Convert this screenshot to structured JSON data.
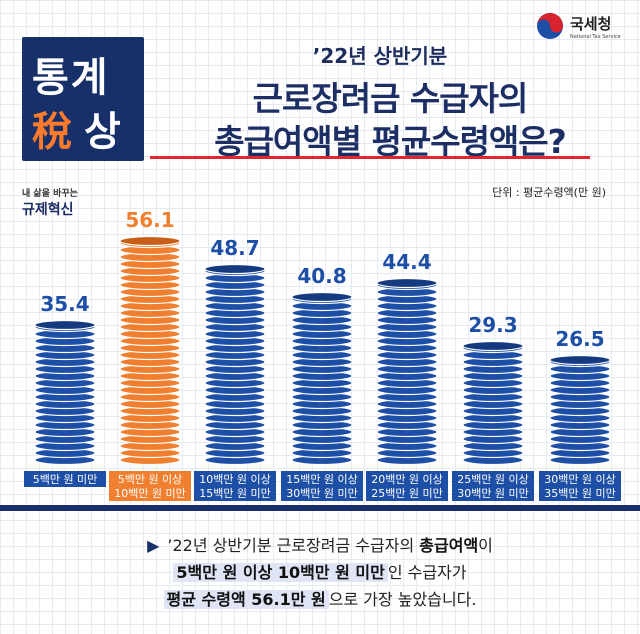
{
  "header": {
    "logo_line1": "통계",
    "logo_line2a": "稅",
    "logo_line2b": "상",
    "agency_name": "국세청",
    "agency_sub": "National Tax Service",
    "subtitle": "’22년 상반기분",
    "title_line1": "근로장려금 수급자의",
    "title_line2": "총급여액별 평균수령액은?",
    "badge_small": "내 삶을 바꾸는",
    "badge_big": "규제혁신",
    "unit": "단위 : 평균수령액(만 원)"
  },
  "colors": {
    "blue": "#1e4fa6",
    "blue_dark": "#163a80",
    "orange": "#f07f2f",
    "orange_dark": "#c85e17",
    "label_blue": "#1e4fa6",
    "label_orange": "#f07f2f"
  },
  "chart_data": {
    "type": "bar",
    "title": "’22년 상반기분 근로장려금 수급자의 총급여액별 평균수령액은?",
    "ylabel": "평균수령액(만 원)",
    "categories": [
      "5백만 원 미만",
      "5백만 원 이상 10백만 원 미만",
      "10백만 원 이상 15백만 원 미만",
      "15백만 원 이상 30백만 원 미만",
      "20백만 원 이상 25백만 원 미만",
      "25백만 원 이상 30백만 원 미만",
      "30백만 원 이상 35백만 원 미만"
    ],
    "category_lines": [
      [
        "5백만 원 미만"
      ],
      [
        "5백만 원 이상",
        "10백만 원 미만"
      ],
      [
        "10백만 원 이상",
        "15백만 원 미만"
      ],
      [
        "15백만 원 이상",
        "30백만 원 미만"
      ],
      [
        "20백만 원 이상",
        "25백만 원 미만"
      ],
      [
        "25백만 원 이상",
        "30백만 원 미만"
      ],
      [
        "30백만 원 이상",
        "35백만 원 미만"
      ]
    ],
    "values": [
      35.4,
      56.1,
      48.7,
      40.8,
      44.4,
      29.3,
      26.5
    ],
    "value_labels": [
      "35.4",
      "56.1",
      "48.7",
      "40.8",
      "44.4",
      "29.3",
      "26.5"
    ],
    "highlight_index": 1,
    "ylim": [
      0,
      60
    ]
  },
  "conclusion": {
    "line1_a": "’22년 상반기분 근로장려금 수급자의 ",
    "line1_b": "총급여액",
    "line1_c": "이",
    "line2_a": "5백만 원 이상 10백만 원 미만",
    "line2_b": "인 수급자가",
    "line3_a": "평균 수령액 56.1만 원",
    "line3_b": "으로 가장 높았습니다."
  }
}
